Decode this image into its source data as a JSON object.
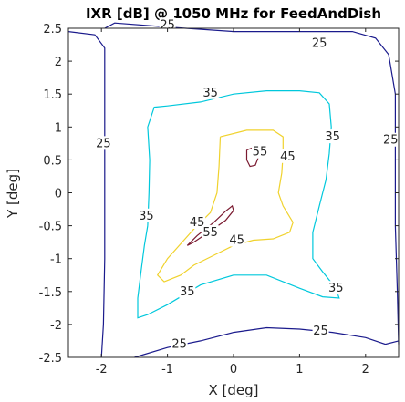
{
  "chart_data": {
    "type": "contour",
    "title": "IXR [dB] @ 1050 MHz for FeedAndDish",
    "xlabel": "X [deg]",
    "ylabel": "Y [deg]",
    "xlim": [
      -2.5,
      2.5
    ],
    "ylim": [
      -2.5,
      2.5
    ],
    "xticks": [
      -2,
      -1,
      0,
      1,
      2
    ],
    "yticks": [
      -2.5,
      -2,
      -1.5,
      -1,
      -0.5,
      0,
      0.5,
      1,
      1.5,
      2,
      2.5
    ],
    "xtick_labels": [
      "-2",
      "-1",
      "0",
      "1",
      "2"
    ],
    "ytick_labels": [
      "-2.5",
      "-2",
      "-1.5",
      "-1",
      "-0.5",
      "0",
      "0.5",
      "1",
      "1.5",
      "2",
      "2.5"
    ],
    "grid": false,
    "levels": [
      {
        "value": 25,
        "label": "25",
        "color": "#1a1a8c",
        "paths": [
          [
            [
              -1.95,
              2.5
            ],
            [
              -1.8,
              2.58
            ],
            [
              -1.0,
              2.52
            ],
            [
              0.0,
              2.45
            ],
            [
              1.0,
              2.45
            ],
            [
              1.8,
              2.45
            ],
            [
              2.15,
              2.35
            ],
            [
              2.35,
              2.1
            ],
            [
              2.45,
              1.5
            ],
            [
              2.45,
              0.5
            ],
            [
              2.45,
              -0.5
            ],
            [
              2.48,
              -1.5
            ],
            [
              2.5,
              -2.3
            ]
          ],
          [
            [
              -2.5,
              2.45
            ],
            [
              -2.1,
              2.4
            ],
            [
              -1.95,
              2.2
            ],
            [
              -1.95,
              1.0
            ],
            [
              -1.95,
              0.0
            ],
            [
              -1.95,
              -1.0
            ],
            [
              -1.97,
              -2.0
            ],
            [
              -2.0,
              -2.5
            ]
          ],
          [
            [
              -1.5,
              -2.5
            ],
            [
              -1.0,
              -2.35
            ],
            [
              -0.5,
              -2.25
            ],
            [
              0.0,
              -2.12
            ],
            [
              0.5,
              -2.05
            ],
            [
              1.0,
              -2.07
            ],
            [
              1.5,
              -2.12
            ],
            [
              2.0,
              -2.2
            ],
            [
              2.3,
              -2.3
            ],
            [
              2.5,
              -2.25
            ]
          ]
        ],
        "labels": [
          [
            -1.0,
            2.55
          ],
          [
            1.3,
            2.27
          ],
          [
            -1.97,
            0.75
          ],
          [
            2.38,
            0.8
          ],
          [
            1.32,
            -2.1
          ],
          [
            -0.82,
            -2.3
          ]
        ]
      },
      {
        "value": 35,
        "label": "35",
        "color": "#00c8dc",
        "paths": [
          [
            [
              -1.3,
              -0.5
            ],
            [
              -1.28,
              0.0
            ],
            [
              -1.27,
              0.5
            ],
            [
              -1.3,
              1.0
            ],
            [
              -1.2,
              1.3
            ],
            [
              -1.0,
              1.32
            ],
            [
              -0.5,
              1.38
            ],
            [
              0.0,
              1.5
            ],
            [
              0.5,
              1.55
            ],
            [
              1.0,
              1.55
            ],
            [
              1.3,
              1.52
            ],
            [
              1.45,
              1.35
            ],
            [
              1.48,
              1.0
            ],
            [
              1.45,
              0.6
            ],
            [
              1.4,
              0.2
            ],
            [
              1.3,
              -0.2
            ],
            [
              1.2,
              -0.6
            ],
            [
              1.2,
              -1.0
            ],
            [
              1.35,
              -1.2
            ],
            [
              1.55,
              -1.45
            ],
            [
              1.6,
              -1.6
            ],
            [
              1.35,
              -1.58
            ],
            [
              1.0,
              -1.45
            ],
            [
              0.5,
              -1.25
            ],
            [
              0.0,
              -1.25
            ],
            [
              -0.5,
              -1.4
            ],
            [
              -1.0,
              -1.7
            ],
            [
              -1.3,
              -1.85
            ],
            [
              -1.45,
              -1.9
            ],
            [
              -1.45,
              -1.6
            ],
            [
              -1.4,
              -1.2
            ],
            [
              -1.35,
              -0.8
            ],
            [
              -1.3,
              -0.5
            ]
          ]
        ],
        "labels": [
          [
            -0.35,
            1.52
          ],
          [
            1.5,
            0.85
          ],
          [
            -1.32,
            -0.35
          ],
          [
            1.55,
            -1.45
          ],
          [
            -0.7,
            -1.5
          ]
        ]
      },
      {
        "value": 45,
        "label": "45",
        "color": "#f0d22d",
        "paths": [
          [
            [
              -0.2,
              0.85
            ],
            [
              0.2,
              0.95
            ],
            [
              0.6,
              0.95
            ],
            [
              0.75,
              0.85
            ],
            [
              0.75,
              0.6
            ],
            [
              0.73,
              0.3
            ],
            [
              0.68,
              0.0
            ],
            [
              0.75,
              -0.2
            ],
            [
              0.9,
              -0.45
            ],
            [
              0.85,
              -0.6
            ],
            [
              0.6,
              -0.7
            ],
            [
              0.3,
              -0.72
            ],
            [
              0.0,
              -0.8
            ],
            [
              -0.3,
              -0.95
            ],
            [
              -0.6,
              -1.1
            ],
            [
              -0.8,
              -1.25
            ],
            [
              -1.05,
              -1.35
            ],
            [
              -1.15,
              -1.25
            ],
            [
              -1.0,
              -1.0
            ],
            [
              -0.6,
              -0.55
            ],
            [
              -0.35,
              -0.3
            ],
            [
              -0.25,
              0.0
            ],
            [
              -0.22,
              0.4
            ],
            [
              -0.2,
              0.85
            ]
          ]
        ],
        "labels": [
          [
            0.82,
            0.55
          ],
          [
            -0.55,
            -0.45
          ],
          [
            0.05,
            -0.72
          ]
        ]
      },
      {
        "value": 55,
        "label": "55",
        "color": "#7a1a30",
        "paths": [
          [
            [
              0.2,
              0.65
            ],
            [
              0.33,
              0.7
            ],
            [
              0.38,
              0.55
            ],
            [
              0.33,
              0.42
            ],
            [
              0.25,
              0.4
            ],
            [
              0.2,
              0.5
            ],
            [
              0.2,
              0.65
            ]
          ],
          [
            [
              -0.7,
              -0.8
            ],
            [
              -0.55,
              -0.65
            ],
            [
              -0.3,
              -0.45
            ],
            [
              -0.12,
              -0.28
            ],
            [
              -0.02,
              -0.2
            ],
            [
              0.0,
              -0.27
            ],
            [
              -0.12,
              -0.42
            ],
            [
              -0.35,
              -0.58
            ],
            [
              -0.6,
              -0.75
            ],
            [
              -0.7,
              -0.8
            ]
          ]
        ],
        "labels": [
          [
            0.4,
            0.62
          ],
          [
            -0.35,
            -0.6
          ]
        ]
      }
    ]
  }
}
